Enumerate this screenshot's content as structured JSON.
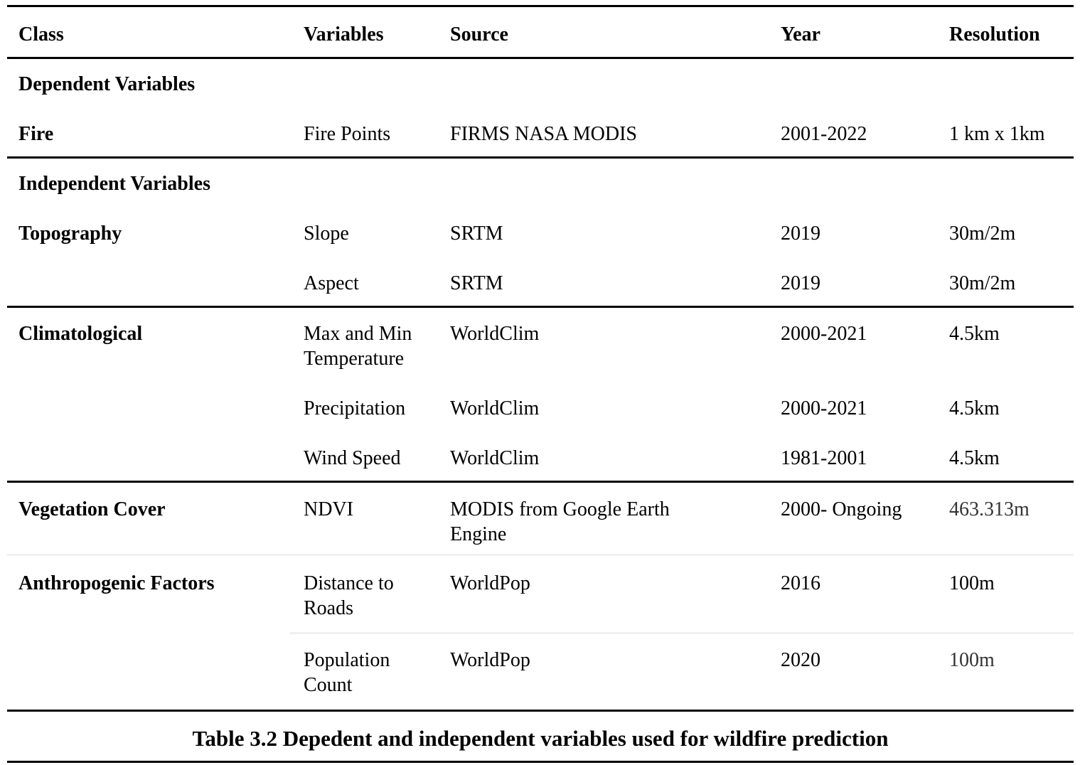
{
  "table": {
    "headers": {
      "class": "Class",
      "variables": "Variables",
      "source": "Source",
      "year": "Year",
      "resolution": "Resolution"
    },
    "sections": {
      "dependent": "Dependent Variables",
      "independent": "Independent Variables"
    },
    "rows": [
      {
        "class": "Fire",
        "variable": "Fire Points",
        "source": "FIRMS NASA MODIS",
        "year": "2001-2022",
        "resolution": "1 km x 1km"
      },
      {
        "class": "Topography",
        "variable": "Slope",
        "source": "SRTM",
        "year": "2019",
        "resolution": "30m/2m"
      },
      {
        "class": "",
        "variable": "Aspect",
        "source": "SRTM",
        "year": "2019",
        "resolution": "30m/2m"
      },
      {
        "class": "Climatological",
        "variable": "Max and Min Temperature",
        "source": "WorldClim",
        "year": "2000-2021",
        "resolution": "4.5km"
      },
      {
        "class": "",
        "variable": "Precipitation",
        "source": "WorldClim",
        "year": "2000-2021",
        "resolution": "4.5km"
      },
      {
        "class": "",
        "variable": "Wind Speed",
        "source": "WorldClim",
        "year": "1981-2001",
        "resolution": "4.5km"
      },
      {
        "class": "Vegetation Cover",
        "variable": "NDVI",
        "source": "MODIS from Google Earth Engine",
        "year": "2000- Ongoing",
        "resolution": "463.313m"
      },
      {
        "class": "Anthropogenic Factors",
        "variable": "Distance to Roads",
        "source": "WorldPop",
        "year": "2016",
        "resolution": "100m"
      },
      {
        "class": "",
        "variable": "Population Count",
        "source": "WorldPop",
        "year": "2020",
        "resolution": "100m"
      }
    ]
  },
  "caption": "Table 3.2 Depedent and independent variables used for wildfire prediction"
}
